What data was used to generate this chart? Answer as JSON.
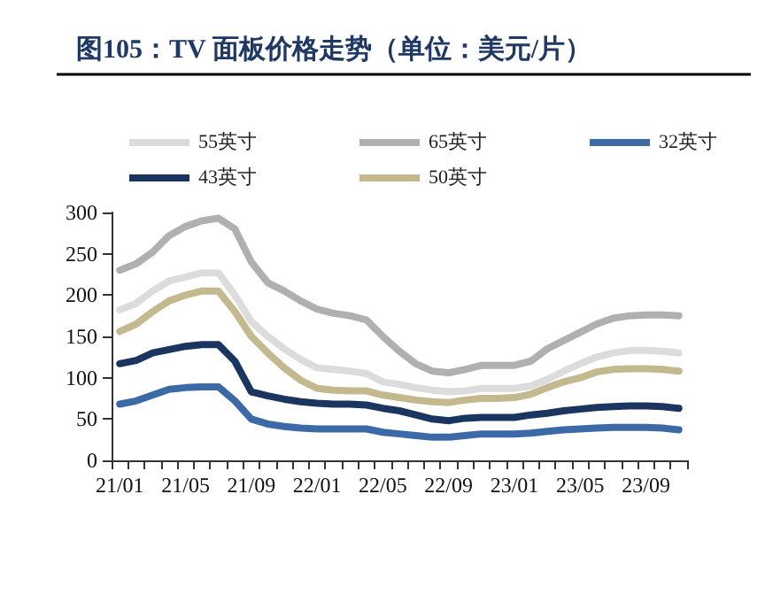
{
  "chart_data": {
    "type": "line",
    "title": "图105：TV 面板价格走势（单位：美元/片）",
    "categories": [
      "21/01",
      null,
      null,
      null,
      "21/05",
      null,
      null,
      null,
      "21/09",
      null,
      null,
      null,
      "22/01",
      null,
      null,
      null,
      "22/05",
      null,
      null,
      null,
      "22/09",
      null,
      null,
      null,
      "23/01",
      null,
      null,
      null,
      "23/05",
      null,
      null,
      null,
      "23/09",
      null,
      null
    ],
    "series": [
      {
        "name": "55英寸",
        "color": "#dcdcdc",
        "values": [
          182,
          190,
          205,
          217,
          222,
          227,
          227,
          200,
          168,
          150,
          135,
          122,
          112,
          110,
          108,
          105,
          95,
          92,
          88,
          85,
          83,
          84,
          87,
          87,
          87,
          90,
          98,
          108,
          117,
          125,
          130,
          133,
          133,
          132,
          130
        ]
      },
      {
        "name": "65英寸",
        "color": "#b0b0b0",
        "values": [
          230,
          238,
          252,
          272,
          283,
          290,
          293,
          280,
          240,
          215,
          205,
          193,
          183,
          178,
          175,
          170,
          150,
          132,
          117,
          108,
          106,
          110,
          115,
          115,
          115,
          120,
          135,
          145,
          155,
          165,
          172,
          175,
          176,
          176,
          175
        ]
      },
      {
        "name": "32英寸",
        "color": "#3b6aa6",
        "values": [
          68,
          72,
          79,
          86,
          88,
          89,
          89,
          72,
          50,
          44,
          41,
          39,
          38,
          38,
          38,
          38,
          34,
          32,
          30,
          28,
          28,
          30,
          32,
          32,
          32,
          33,
          35,
          37,
          38,
          39,
          40,
          40,
          40,
          39,
          37
        ]
      },
      {
        "name": "43英寸",
        "color": "#1a3560",
        "values": [
          117,
          121,
          130,
          134,
          138,
          140,
          140,
          120,
          83,
          78,
          74,
          71,
          69,
          68,
          68,
          67,
          63,
          60,
          55,
          50,
          48,
          51,
          52,
          52,
          52,
          55,
          57,
          60,
          62,
          64,
          65,
          66,
          66,
          65,
          63
        ]
      },
      {
        "name": "50英寸",
        "color": "#c4b98e",
        "values": [
          156,
          165,
          180,
          193,
          200,
          205,
          205,
          180,
          150,
          130,
          112,
          97,
          87,
          85,
          84,
          84,
          79,
          76,
          73,
          71,
          70,
          73,
          75,
          75,
          76,
          80,
          88,
          95,
          100,
          107,
          110,
          111,
          111,
          110,
          108
        ]
      }
    ],
    "ylim": [
      0,
      300
    ],
    "yticks": [
      0,
      50,
      100,
      150,
      200,
      250,
      300
    ],
    "grid": false,
    "legend": "top",
    "marker": "none",
    "line_style": "solid"
  }
}
